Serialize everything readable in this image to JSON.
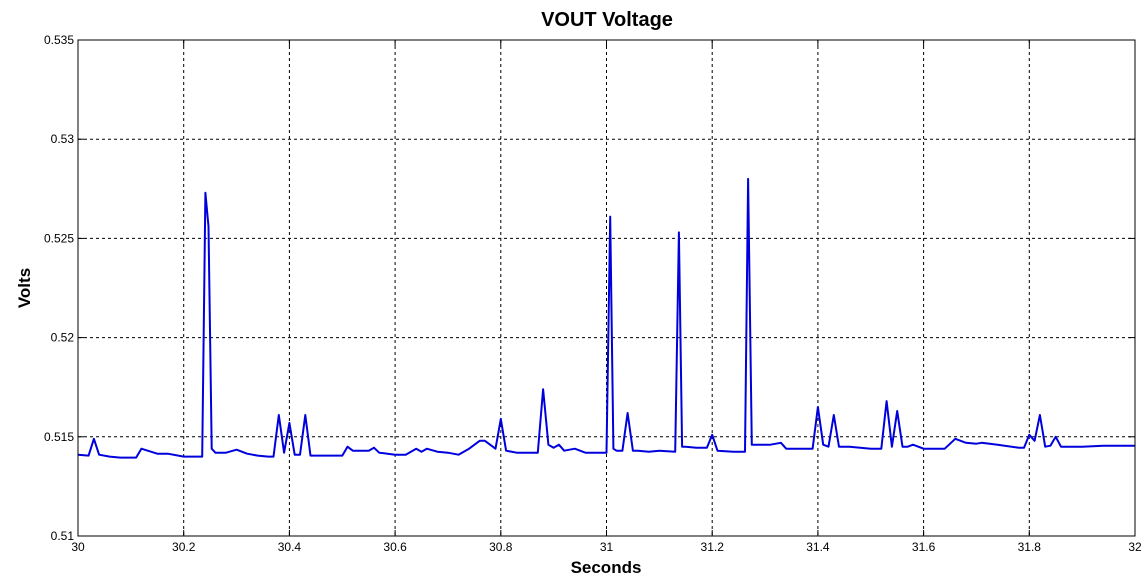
{
  "chart_data": {
    "type": "line",
    "title": "VOUT Voltage",
    "xlabel": "Seconds",
    "ylabel": "Volts",
    "xlim": [
      30,
      32
    ],
    "ylim": [
      0.51,
      0.535
    ],
    "x_ticks": [
      "30",
      "30.2",
      "30.4",
      "30.6",
      "30.8",
      "31",
      "31.2",
      "31.4",
      "31.6",
      "31.8",
      "32"
    ],
    "y_ticks": [
      "0.51",
      "0.515",
      "0.52",
      "0.525",
      "0.53",
      "0.535"
    ],
    "grid": true,
    "line_color": "#0000dd",
    "series": [
      {
        "x": [
          30.0,
          30.02,
          30.03,
          30.04,
          30.06,
          30.08,
          30.1,
          30.11,
          30.12,
          30.15,
          30.17,
          30.2,
          30.22,
          30.235,
          30.241,
          30.247,
          30.253,
          30.26,
          30.28,
          30.3,
          30.32,
          30.34,
          30.36,
          30.37,
          30.38,
          30.39,
          30.4,
          30.41,
          30.42,
          30.43,
          30.44,
          30.46,
          30.5,
          30.51,
          30.52,
          30.55,
          30.56,
          30.57,
          30.6,
          30.62,
          30.64,
          30.65,
          30.66,
          30.68,
          30.7,
          30.72,
          30.74,
          30.76,
          30.77,
          30.79,
          30.8,
          30.81,
          30.83,
          30.85,
          30.87,
          30.88,
          30.89,
          30.9,
          30.91,
          30.92,
          30.94,
          30.96,
          30.98,
          31.0,
          31.007,
          31.013,
          31.019,
          31.03,
          31.04,
          31.05,
          31.06,
          31.08,
          31.1,
          31.13,
          31.137,
          31.143,
          31.15,
          31.17,
          31.19,
          31.2,
          31.21,
          31.24,
          31.262,
          31.268,
          31.275,
          31.29,
          31.31,
          31.33,
          31.34,
          31.38,
          31.39,
          31.4,
          31.41,
          31.42,
          31.43,
          31.44,
          31.46,
          31.5,
          31.52,
          31.53,
          31.54,
          31.55,
          31.56,
          31.57,
          31.58,
          31.59,
          31.6,
          31.64,
          31.66,
          31.68,
          31.7,
          31.71,
          31.74,
          31.78,
          31.79,
          31.8,
          31.81,
          31.82,
          31.83,
          31.84,
          31.85,
          31.86,
          31.9,
          31.94,
          32.0
        ],
        "y": [
          0.5141,
          0.51405,
          0.5149,
          0.5141,
          0.514,
          0.51395,
          0.51395,
          0.51395,
          0.5144,
          0.51415,
          0.51415,
          0.514,
          0.514,
          0.514,
          0.5273,
          0.5256,
          0.5144,
          0.5142,
          0.5142,
          0.51435,
          0.51415,
          0.51405,
          0.514,
          0.514,
          0.5161,
          0.5142,
          0.5157,
          0.5141,
          0.5141,
          0.5161,
          0.51405,
          0.51405,
          0.51405,
          0.5145,
          0.5143,
          0.5143,
          0.51445,
          0.5142,
          0.5141,
          0.5141,
          0.5144,
          0.51425,
          0.5144,
          0.51425,
          0.5142,
          0.5141,
          0.5144,
          0.5148,
          0.5148,
          0.5144,
          0.5159,
          0.5143,
          0.5142,
          0.5142,
          0.5142,
          0.5174,
          0.5146,
          0.51445,
          0.5146,
          0.5143,
          0.5144,
          0.5142,
          0.5142,
          0.5142,
          0.5261,
          0.5144,
          0.5143,
          0.5143,
          0.5162,
          0.5143,
          0.5143,
          0.51425,
          0.5143,
          0.51425,
          0.5253,
          0.5145,
          0.5145,
          0.51445,
          0.51445,
          0.5151,
          0.5143,
          0.51425,
          0.51425,
          0.528,
          0.5146,
          0.5146,
          0.5146,
          0.5147,
          0.5144,
          0.5144,
          0.5144,
          0.5165,
          0.5146,
          0.5145,
          0.5161,
          0.5145,
          0.5145,
          0.5144,
          0.5144,
          0.5168,
          0.5145,
          0.5163,
          0.5145,
          0.5145,
          0.5146,
          0.5145,
          0.5144,
          0.5144,
          0.5149,
          0.5147,
          0.51465,
          0.5147,
          0.5146,
          0.51445,
          0.51445,
          0.5151,
          0.5148,
          0.5161,
          0.5145,
          0.51455,
          0.515,
          0.5145,
          0.5145,
          0.51455,
          0.51455
        ]
      }
    ]
  }
}
